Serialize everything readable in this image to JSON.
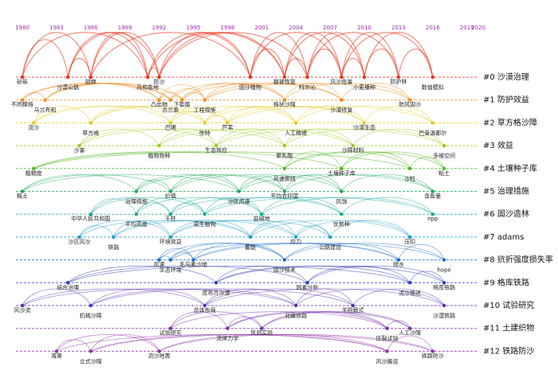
{
  "timeline": {
    "years": [
      1980,
      1983,
      1986,
      1989,
      1992,
      1995,
      1998,
      2001,
      2004,
      2007,
      2010,
      2013,
      2016,
      2019,
      2020
    ],
    "year_range": [
      1980,
      2020
    ],
    "clusters": [
      {
        "label": "#0 沙漠治理",
        "color": "#e8341c",
        "keywords": [
          {
            "label": "砂砾",
            "year": 1980
          },
          {
            "label": "沙漠公路",
            "year": 1984
          },
          {
            "label": "胡麻",
            "year": 1986
          },
          {
            "label": "兵和盐地",
            "year": 1991
          },
          {
            "label": "防沙",
            "year": 1992
          },
          {
            "label": "固沙植物",
            "year": 2000
          },
          {
            "label": "植被恢复",
            "year": 2003
          },
          {
            "label": "科尔沁",
            "year": 2005
          },
          {
            "label": "风沙危害",
            "year": 2008
          },
          {
            "label": "小麦播种",
            "year": 2010
          },
          {
            "label": "防护林",
            "year": 2013
          },
          {
            "label": "数值模拟",
            "year": 2016
          }
        ]
      },
      {
        "label": "#1 防护效益",
        "color": "#f08a1c",
        "keywords": [
          {
            "label": "不同模格",
            "year": 1980
          },
          {
            "label": "乌兰布和",
            "year": 1982
          },
          {
            "label": "凸出物",
            "year": 1992
          },
          {
            "label": "古兰泰",
            "year": 1993
          },
          {
            "label": "下垫面",
            "year": 1994
          },
          {
            "label": "工程措施",
            "year": 1996
          },
          {
            "label": "格状沙障",
            "year": 2003
          },
          {
            "label": "沙漠修复",
            "year": 2008
          },
          {
            "label": "防风固沙",
            "year": 2014
          }
        ]
      },
      {
        "label": "#2 草方格沙障",
        "color": "#e6c81a",
        "keywords": [
          {
            "label": "流沙",
            "year": 1981
          },
          {
            "label": "草方格",
            "year": 1986
          },
          {
            "label": "巴噶",
            "year": 1993
          },
          {
            "label": "张特",
            "year": 1996
          },
          {
            "label": "芦苇",
            "year": 1998
          },
          {
            "label": "人工植被",
            "year": 2004
          },
          {
            "label": "沙漠生态",
            "year": 2010
          },
          {
            "label": "巴音温都尔",
            "year": 2016
          }
        ]
      },
      {
        "label": "#3 效益",
        "color": "#9ccc1c",
        "keywords": [
          {
            "label": "沙害",
            "year": 1985
          },
          {
            "label": "植物物种",
            "year": 1992
          },
          {
            "label": "生态效应",
            "year": 1997
          },
          {
            "label": "聚乳酸",
            "year": 2003
          },
          {
            "label": "沙障材料",
            "year": 2009
          },
          {
            "label": "多维空间",
            "year": 2017
          }
        ]
      },
      {
        "label": "#4 土壤种子库",
        "color": "#4cb81c",
        "keywords": [
          {
            "label": "粗糙度",
            "year": 1981
          },
          {
            "label": "风速廓线",
            "year": 2003
          },
          {
            "label": "土壤种子库",
            "year": 2008
          },
          {
            "label": "沙粒",
            "year": 2014
          },
          {
            "label": "粘土",
            "year": 2017
          }
        ]
      },
      {
        "label": "#5 治理措施",
        "color": "#1ca85a",
        "keywords": [
          {
            "label": "精土",
            "year": 1980
          },
          {
            "label": "治理措施",
            "year": 1990
          },
          {
            "label": "价值",
            "year": 1993
          },
          {
            "label": "沙区风速",
            "year": 1999
          },
          {
            "label": "平均衣印度",
            "year": 2003
          },
          {
            "label": "风蚀",
            "year": 2008
          },
          {
            "label": "含盐量",
            "year": 2016
          }
        ]
      },
      {
        "label": "#6 固沙造林",
        "color": "#1ca89a",
        "keywords": [
          {
            "label": "中华人民共和国",
            "year": 1986
          },
          {
            "label": "平均高度",
            "year": 1990
          },
          {
            "label": "干柱",
            "year": 1993
          },
          {
            "label": "菜生植物",
            "year": 1996
          },
          {
            "label": "盐碱地",
            "year": 2001
          },
          {
            "label": "优势种",
            "year": 2008
          },
          {
            "label": "npp",
            "year": 2016
          }
        ]
      },
      {
        "label": "#7 adams",
        "color": "#1c9cc8",
        "keywords": [
          {
            "label": "沙区风沙",
            "year": 1985
          },
          {
            "label": "铁路",
            "year": 1988
          },
          {
            "label": "环境效益",
            "year": 1993
          },
          {
            "label": "蓄能",
            "year": 2000
          },
          {
            "label": "应力",
            "year": 2004
          },
          {
            "label": "公路建设",
            "year": 2007
          },
          {
            "label": "压扣",
            "year": 2014
          }
        ]
      },
      {
        "label": "#8 抗折强度损失率",
        "color": "#1c6cc8",
        "keywords": [
          {
            "label": "风速",
            "year": 1992
          },
          {
            "label": "生态环境",
            "year": 1993
          },
          {
            "label": "毛乌素沙地",
            "year": 1995
          },
          {
            "label": "固沙技术",
            "year": 2003
          },
          {
            "label": "排水",
            "year": 2013
          },
          {
            "label": "hope",
            "year": 2017
          }
        ]
      },
      {
        "label": "#9 格库铁路",
        "color": "#2c3cb8",
        "keywords": [
          {
            "label": "综合治理",
            "year": 1984
          },
          {
            "label": "库布齐沙漠",
            "year": 1997
          },
          {
            "label": "因素分析",
            "year": 2005
          },
          {
            "label": "泥沙输送",
            "year": 2014
          },
          {
            "label": "格库铁路",
            "year": 2017
          }
        ]
      },
      {
        "label": "#10 试验研究",
        "color": "#5a2cb8",
        "keywords": [
          {
            "label": "风沙流",
            "year": 1980
          },
          {
            "label": "机械沙障",
            "year": 1986
          },
          {
            "label": "总体布局",
            "year": 1996
          },
          {
            "label": "北疆铁路",
            "year": 2004
          },
          {
            "label": "半阻截式",
            "year": 2009
          },
          {
            "label": "沙漠铁路",
            "year": 2017
          }
        ]
      },
      {
        "label": "#11 土建织物",
        "color": "#7a2cb0",
        "keywords": [
          {
            "label": "试验研究",
            "year": 1993
          },
          {
            "label": "流体力学",
            "year": 1998
          },
          {
            "label": "风洞实验",
            "year": 2001
          },
          {
            "label": "压裂试验",
            "year": 2012
          },
          {
            "label": "人工沙障",
            "year": 2014
          }
        ]
      },
      {
        "label": "#12 铁路防沙",
        "color": "#8e2ca8",
        "keywords": [
          {
            "label": "海萧",
            "year": 1983
          },
          {
            "label": "立式沙障",
            "year": 1986
          },
          {
            "label": "流沙地表",
            "year": 1992
          },
          {
            "label": "风沙搬运",
            "year": 2012
          },
          {
            "label": "铁路防沙",
            "year": 2016
          }
        ]
      }
    ]
  }
}
